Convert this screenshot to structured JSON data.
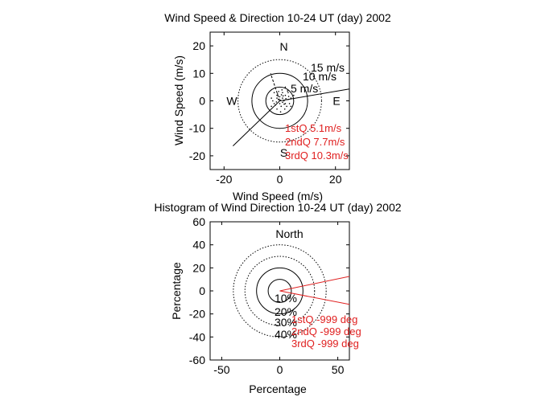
{
  "chart_data": [
    {
      "type": "scatter",
      "title": "Wind Speed & Direction 10-24 UT (day) 2002",
      "xlabel": "Wind Speed (m/s)",
      "ylabel": "Wind Speed (m/s)",
      "xlim": [
        -25,
        25
      ],
      "ylim": [
        -25,
        25
      ],
      "xticks": [
        -20,
        0,
        20
      ],
      "yticks": [
        -20,
        -10,
        0,
        10,
        20
      ],
      "circles": [
        {
          "r": 5,
          "label": "5 m/s",
          "style": "solid"
        },
        {
          "r": 10,
          "label": "10 m/s",
          "style": "solid"
        },
        {
          "r": 15,
          "label": "15 m/s",
          "style": "dotted"
        }
      ],
      "compass": {
        "north": "N",
        "south": "S",
        "east": "E",
        "west": "W"
      },
      "vectors": [
        {
          "x2": 25,
          "y2": 4.3,
          "style": "solid"
        },
        {
          "x2": -16.8,
          "y2": -16.4,
          "style": "solid"
        },
        {
          "x2": -3.3,
          "y2": 10,
          "style": "dashed"
        }
      ],
      "quartiles": [
        "1stQ 5.1m/s",
        "2ndQ 7.7m/s",
        "3rdQ 10.3m/s"
      ],
      "points": [
        [
          1,
          1
        ],
        [
          2,
          -1
        ],
        [
          -1,
          2
        ],
        [
          3,
          0.5
        ],
        [
          0.5,
          -2
        ],
        [
          -2,
          -1
        ],
        [
          1,
          3
        ],
        [
          2,
          2
        ],
        [
          -1,
          -3
        ],
        [
          4,
          1
        ],
        [
          0,
          1.5
        ],
        [
          1.5,
          0
        ],
        [
          -0.5,
          0.5
        ],
        [
          2.5,
          -2
        ],
        [
          -3,
          1
        ],
        [
          0.8,
          4
        ],
        [
          3,
          3
        ],
        [
          -1.5,
          -1.5
        ],
        [
          1,
          -0.5
        ],
        [
          5,
          2
        ],
        [
          -2,
          3
        ],
        [
          0.3,
          -4
        ],
        [
          2,
          5
        ],
        [
          -3,
          -2
        ],
        [
          1.2,
          1.8
        ],
        [
          3.5,
          -1
        ],
        [
          -1,
          1
        ],
        [
          0,
          -1
        ],
        [
          2.2,
          0.8
        ],
        [
          -0.8,
          2.5
        ],
        [
          4,
          -2
        ],
        [
          1.8,
          -3
        ],
        [
          -2.5,
          0
        ],
        [
          0.6,
          2.2
        ],
        [
          3.2,
          1.6
        ],
        [
          -1.2,
          -0.4
        ],
        [
          2.8,
          3.6
        ],
        [
          0.2,
          0.2
        ],
        [
          -0.4,
          3.4
        ],
        [
          1.6,
          -1.2
        ]
      ]
    },
    {
      "type": "scatter",
      "title": "Histogram of Wind Direction 10-24 UT (day) 2002",
      "xlabel": "Percentage",
      "ylabel": "Percentage",
      "xlim": [
        -60,
        60
      ],
      "ylim": [
        -60,
        60
      ],
      "xticks": [
        -50,
        0,
        50
      ],
      "yticks": [
        -60,
        -40,
        -20,
        0,
        20,
        40,
        60
      ],
      "circles": [
        {
          "r": 10,
          "label": "10%",
          "style": "solid"
        },
        {
          "r": 20,
          "label": "20%",
          "style": "solid"
        },
        {
          "r": 30,
          "label": "30%",
          "style": "dotted"
        },
        {
          "r": 40,
          "label": "40%",
          "style": "dotted"
        }
      ],
      "north_label": "North",
      "vectors": [
        {
          "x2": 60,
          "y2": 12.6,
          "style": "solid"
        },
        {
          "x2": 60,
          "y2": -11.7,
          "style": "solid"
        }
      ],
      "quartiles": [
        "1stQ -999 deg",
        "2ndQ -999 deg",
        "3rdQ -999 deg"
      ]
    }
  ]
}
